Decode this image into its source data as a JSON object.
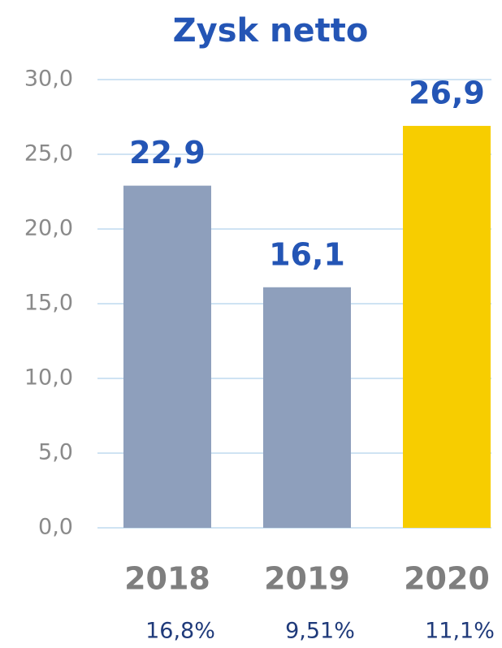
{
  "chart_data": {
    "type": "bar",
    "title": "Zysk netto",
    "categories": [
      "2018",
      "2019",
      "2020"
    ],
    "values": [
      22.9,
      16.1,
      26.9
    ],
    "value_labels": [
      "22,9",
      "16,1",
      "26,9"
    ],
    "colors": [
      "#8e9fbc",
      "#8e9fbc",
      "#f7cd00"
    ],
    "annotations": [
      "16,8%",
      "9,51%",
      "11,1%"
    ],
    "ylim": [
      0,
      30
    ],
    "yticks": [
      {
        "value": 0,
        "label": "0,0"
      },
      {
        "value": 5,
        "label": "5,0"
      },
      {
        "value": 10,
        "label": "10,0"
      },
      {
        "value": 15,
        "label": "15,0"
      },
      {
        "value": 20,
        "label": "20,0"
      },
      {
        "value": 25,
        "label": "25,0"
      },
      {
        "value": 30,
        "label": "30,0"
      }
    ],
    "grid": true
  }
}
